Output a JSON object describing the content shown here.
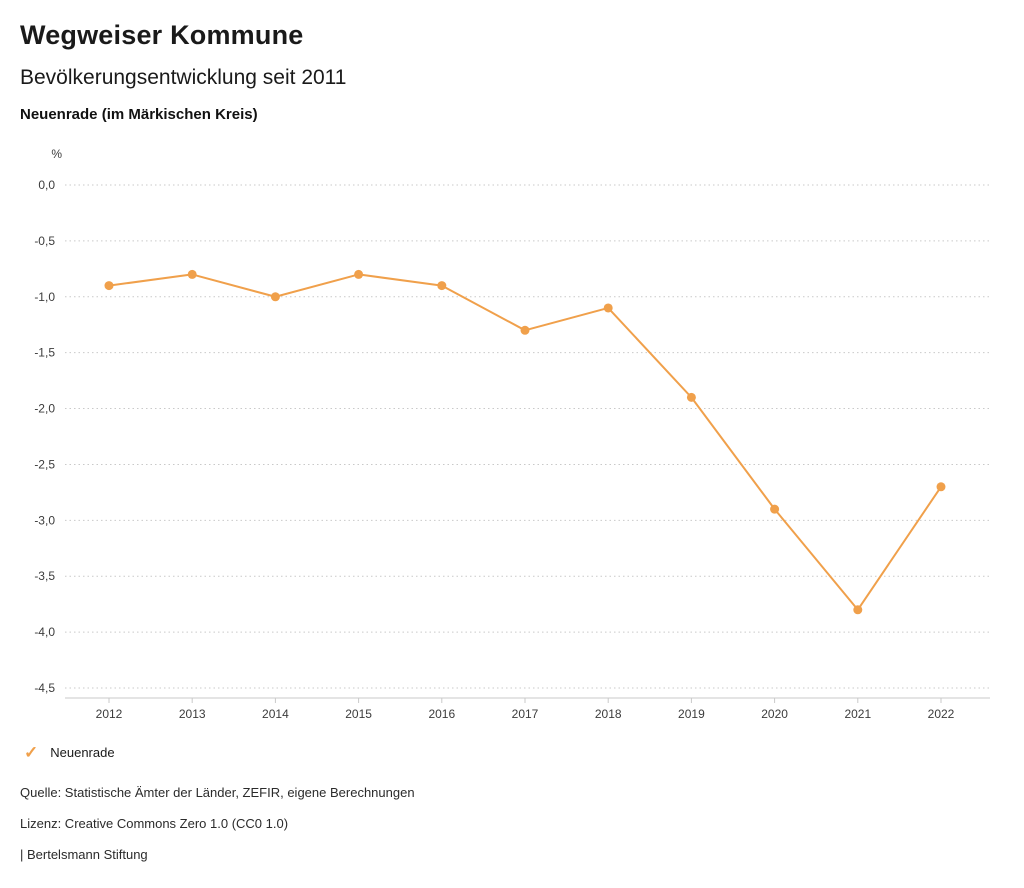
{
  "header": {
    "title": "Wegweiser Kommune",
    "subtitle": "Bevölkerungsentwicklung seit 2011",
    "region": "Neuenrade (im Märkischen Kreis)"
  },
  "chart_data": {
    "type": "line",
    "title": "Bevölkerungsentwicklung seit 2011",
    "xlabel": "",
    "ylabel": "%",
    "categories": [
      "2012",
      "2013",
      "2014",
      "2015",
      "2016",
      "2017",
      "2018",
      "2019",
      "2020",
      "2021",
      "2022"
    ],
    "series": [
      {
        "name": "Neuenrade",
        "values": [
          -0.9,
          -0.8,
          -1.0,
          -0.8,
          -0.9,
          -1.3,
          -1.1,
          -1.9,
          -2.9,
          -3.8,
          -2.7
        ],
        "color": "#F0A04B"
      }
    ],
    "ylim": [
      -4.5,
      0
    ],
    "yticks": [
      {
        "value": 0,
        "label": "0,0"
      },
      {
        "value": -0.5,
        "label": "-0,5"
      },
      {
        "value": -1.0,
        "label": "-1,0"
      },
      {
        "value": -1.5,
        "label": "-1,5"
      },
      {
        "value": -2.0,
        "label": "-2,0"
      },
      {
        "value": -2.5,
        "label": "-2,5"
      },
      {
        "value": -3.0,
        "label": "-3,0"
      },
      {
        "value": -3.5,
        "label": "-3,5"
      },
      {
        "value": -4.0,
        "label": "-4,0"
      },
      {
        "value": -4.5,
        "label": "-4,5"
      }
    ],
    "grid": "horizontal-dotted",
    "legend_position": "bottom-left"
  },
  "legend": {
    "marker": "check-icon",
    "label": "Neuenrade"
  },
  "footer": {
    "source": "Quelle: Statistische Ämter der Länder, ZEFIR, eigene Berechnungen",
    "license": "Lizenz: Creative Commons Zero 1.0 (CC0 1.0)",
    "attribution": "| Bertelsmann Stiftung"
  },
  "colors": {
    "accent": "#F0A04B",
    "grid": "#C9C9C9",
    "title_text": "#1A1A1A",
    "axis_text": "#3C3C3C"
  }
}
